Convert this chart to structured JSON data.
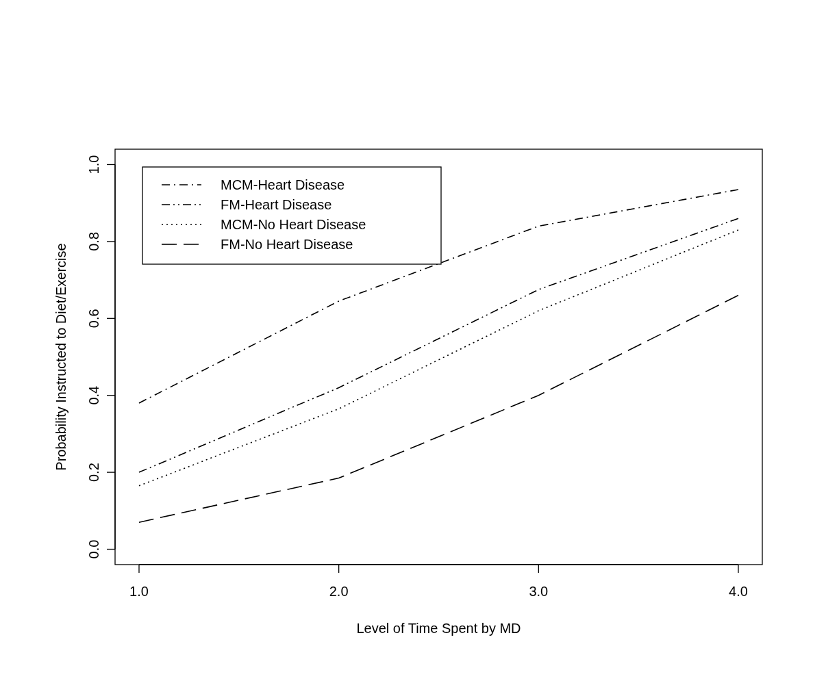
{
  "chart_data": {
    "type": "line",
    "xlabel": "Level of Time Spent by MD",
    "ylabel": "Probability Instructed to Diet/Exercise",
    "x": [
      1,
      2,
      3,
      4
    ],
    "series": [
      {
        "name": "MCM-Heart Disease",
        "color": "#000000",
        "line_style": "dashdot",
        "values": [
          0.38,
          0.645,
          0.84,
          0.935
        ]
      },
      {
        "name": "FM-Heart Disease",
        "color": "#000000",
        "line_style": "dashdotdot",
        "values": [
          0.2,
          0.42,
          0.675,
          0.86
        ]
      },
      {
        "name": "MCM-No Heart Disease",
        "color": "#000000",
        "line_style": "dotted",
        "values": [
          0.165,
          0.365,
          0.62,
          0.83
        ]
      },
      {
        "name": "FM-No Heart Disease",
        "color": "#000000",
        "line_style": "dashed",
        "values": [
          0.07,
          0.185,
          0.4,
          0.66
        ]
      }
    ],
    "xlim": [
      0.88,
      4.12
    ],
    "ylim": [
      -0.04,
      1.04
    ],
    "xticks": [
      {
        "value": 1,
        "label": "1.0"
      },
      {
        "value": 2,
        "label": "2.0"
      },
      {
        "value": 3,
        "label": "3.0"
      },
      {
        "value": 4,
        "label": "4.0"
      }
    ],
    "yticks": [
      {
        "value": 0,
        "label": "0.0"
      },
      {
        "value": 0.2,
        "label": "0.2"
      },
      {
        "value": 0.4,
        "label": "0.4"
      },
      {
        "value": 0.6,
        "label": "0.6"
      },
      {
        "value": 0.8,
        "label": "0.8"
      },
      {
        "value": 1,
        "label": "1.0"
      }
    ],
    "grid": false,
    "legend": "top left",
    "marker": "none"
  }
}
